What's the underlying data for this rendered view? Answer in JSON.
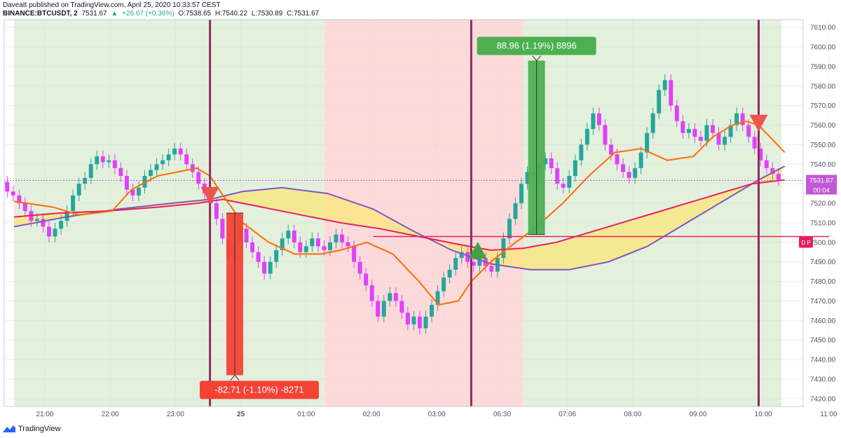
{
  "header": {
    "publisher_line": "Daveatt published on TradingView.com, April 25, 2020 10:33:57 CEST",
    "symbol": "BINANCE:BTCUSDT, 2",
    "last": "7531.67",
    "change": "+26.67 (+0.36%)",
    "open": "O:7538.65",
    "high": "H:7540.22",
    "low": "L:7530.89",
    "close": "C:7531.67"
  },
  "footer": {
    "brand": "TradingView"
  },
  "colors": {
    "green_zone": "#e3f0dc",
    "red_zone": "#fddada",
    "up": "#26a69a",
    "down": "#e040fb",
    "fast_ma": "#ff6d00",
    "slow_ma": "#e91e63",
    "trend": "#7e57c2",
    "fill": "#fbe67a"
  },
  "chart_data": {
    "type": "candlestick",
    "x_ticks": [
      "21:00",
      "22:00",
      "23:00",
      "25",
      "01:00",
      "02:00",
      "03:00",
      "06:30",
      "07:06",
      "08:00",
      "09:00",
      "10:00",
      "11:00"
    ],
    "y_ticks": [
      7420.0,
      7430.0,
      7440.0,
      7450.0,
      7460.0,
      7470.0,
      7480.0,
      7490.0,
      7500.0,
      7510.0,
      7520.0,
      7530.0,
      7540.0,
      7550.0,
      7560.0,
      7570.0,
      7580.0,
      7590.0,
      7600.0,
      7610.0
    ],
    "ylim": [
      7416,
      7614
    ],
    "price_label": "7531.67",
    "countdown_label": "00:04",
    "side_tag": "D P",
    "zones": [
      {
        "from": 0,
        "to": 4.75,
        "state": "long"
      },
      {
        "from": 4.75,
        "to": 7.8,
        "state": "short"
      },
      {
        "from": 7.8,
        "to": 11.75,
        "state": "long"
      }
    ],
    "signal_lines": [
      3.0,
      7.0,
      11.4
    ],
    "signals": [
      {
        "type": "sell",
        "x": 3.0,
        "price": 7524
      },
      {
        "type": "buy",
        "x": 7.1,
        "price": 7496
      },
      {
        "type": "sell",
        "x": 11.4,
        "price": 7561
      }
    ],
    "measures": [
      {
        "label": "-82.71 (-1.10%) -8271",
        "x": 3.38,
        "from": 7515,
        "to": 7432,
        "dir": "down"
      },
      {
        "label": "88.96 (1.19%) 8896",
        "x": 8.0,
        "from": 7504,
        "to": 7593,
        "dir": "up"
      }
    ],
    "level_line": {
      "price": 7503,
      "from": 5.5,
      "to": 12.48
    },
    "candles": [
      [
        7531,
        7526
      ],
      [
        7526,
        7524
      ],
      [
        7524,
        7520
      ],
      [
        7520,
        7516
      ],
      [
        7516,
        7511
      ],
      [
        7511,
        7512
      ],
      [
        7512,
        7508
      ],
      [
        7508,
        7503
      ],
      [
        7503,
        7507
      ],
      [
        7507,
        7511
      ],
      [
        7511,
        7516
      ],
      [
        7516,
        7524
      ],
      [
        7524,
        7530
      ],
      [
        7530,
        7533
      ],
      [
        7533,
        7540
      ],
      [
        7540,
        7544
      ],
      [
        7544,
        7541
      ],
      [
        7541,
        7542
      ],
      [
        7542,
        7538
      ],
      [
        7538,
        7534
      ],
      [
        7534,
        7527
      ],
      [
        7527,
        7524
      ],
      [
        7524,
        7528
      ],
      [
        7528,
        7534
      ],
      [
        7534,
        7537
      ],
      [
        7537,
        7540
      ],
      [
        7540,
        7542
      ],
      [
        7542,
        7545
      ],
      [
        7545,
        7548
      ],
      [
        7548,
        7545
      ],
      [
        7545,
        7540
      ],
      [
        7540,
        7536
      ],
      [
        7536,
        7530
      ],
      [
        7530,
        7525
      ],
      [
        7525,
        7520
      ],
      [
        7520,
        7512
      ],
      [
        7512,
        7502
      ],
      [
        7502,
        7492
      ],
      [
        7492,
        7500
      ],
      [
        7500,
        7507
      ],
      [
        7507,
        7500
      ],
      [
        7500,
        7495
      ],
      [
        7495,
        7490
      ],
      [
        7490,
        7484
      ],
      [
        7484,
        7490
      ],
      [
        7490,
        7496
      ],
      [
        7496,
        7502
      ],
      [
        7502,
        7506
      ],
      [
        7506,
        7500
      ],
      [
        7500,
        7495
      ],
      [
        7495,
        7498
      ],
      [
        7498,
        7502
      ],
      [
        7502,
        7498
      ],
      [
        7498,
        7496
      ],
      [
        7496,
        7500
      ],
      [
        7500,
        7504
      ],
      [
        7504,
        7500
      ],
      [
        7500,
        7498
      ],
      [
        7498,
        7490
      ],
      [
        7490,
        7484
      ],
      [
        7484,
        7478
      ],
      [
        7478,
        7470
      ],
      [
        7470,
        7462
      ],
      [
        7462,
        7470
      ],
      [
        7470,
        7474
      ],
      [
        7474,
        7470
      ],
      [
        7470,
        7464
      ],
      [
        7464,
        7458
      ],
      [
        7458,
        7462
      ],
      [
        7462,
        7456
      ],
      [
        7456,
        7462
      ],
      [
        7462,
        7468
      ],
      [
        7468,
        7475
      ],
      [
        7475,
        7482
      ],
      [
        7482,
        7486
      ],
      [
        7486,
        7492
      ],
      [
        7492,
        7495
      ],
      [
        7495,
        7490
      ],
      [
        7490,
        7488
      ],
      [
        7488,
        7492
      ],
      [
        7492,
        7488
      ],
      [
        7488,
        7485
      ],
      [
        7485,
        7492
      ],
      [
        7492,
        7502
      ],
      [
        7502,
        7512
      ],
      [
        7512,
        7520
      ],
      [
        7520,
        7530
      ],
      [
        7530,
        7536
      ],
      [
        7536,
        7534
      ],
      [
        7534,
        7540
      ],
      [
        7540,
        7543
      ],
      [
        7543,
        7538
      ],
      [
        7538,
        7530
      ],
      [
        7530,
        7528
      ],
      [
        7528,
        7534
      ],
      [
        7534,
        7542
      ],
      [
        7542,
        7550
      ],
      [
        7550,
        7558
      ],
      [
        7558,
        7566
      ],
      [
        7566,
        7560
      ],
      [
        7560,
        7550
      ],
      [
        7550,
        7545
      ],
      [
        7545,
        7540
      ],
      [
        7540,
        7536
      ],
      [
        7536,
        7533
      ],
      [
        7533,
        7538
      ],
      [
        7538,
        7546
      ],
      [
        7546,
        7556
      ],
      [
        7556,
        7566
      ],
      [
        7566,
        7578
      ],
      [
        7578,
        7583
      ],
      [
        7583,
        7570
      ],
      [
        7570,
        7562
      ],
      [
        7562,
        7556
      ],
      [
        7556,
        7558
      ],
      [
        7558,
        7554
      ],
      [
        7554,
        7552
      ],
      [
        7552,
        7560
      ],
      [
        7560,
        7556
      ],
      [
        7556,
        7550
      ],
      [
        7550,
        7554
      ],
      [
        7554,
        7560
      ],
      [
        7560,
        7566
      ],
      [
        7566,
        7560
      ],
      [
        7560,
        7554
      ],
      [
        7554,
        7548
      ],
      [
        7548,
        7542
      ],
      [
        7542,
        7538
      ],
      [
        7538,
        7535
      ],
      [
        7535,
        7532
      ]
    ],
    "fast_ma": [
      [
        0,
        7521
      ],
      [
        0.6,
        7518
      ],
      [
        1.0,
        7514
      ],
      [
        1.5,
        7516
      ],
      [
        1.8,
        7527
      ],
      [
        2.2,
        7534
      ],
      [
        2.5,
        7536
      ],
      [
        2.8,
        7538
      ],
      [
        3.0,
        7534
      ],
      [
        3.2,
        7524
      ],
      [
        3.5,
        7510
      ],
      [
        3.9,
        7500
      ],
      [
        4.3,
        7494
      ],
      [
        4.7,
        7494
      ],
      [
        5.0,
        7496
      ],
      [
        5.4,
        7500
      ],
      [
        5.8,
        7494
      ],
      [
        6.2,
        7480
      ],
      [
        6.5,
        7468
      ],
      [
        6.8,
        7470
      ],
      [
        7.0,
        7480
      ],
      [
        7.3,
        7490
      ],
      [
        7.6,
        7498
      ],
      [
        8.0,
        7508
      ],
      [
        8.4,
        7520
      ],
      [
        8.8,
        7534
      ],
      [
        9.2,
        7546
      ],
      [
        9.6,
        7548
      ],
      [
        10.0,
        7542
      ],
      [
        10.4,
        7544
      ],
      [
        10.7,
        7554
      ],
      [
        11.0,
        7560
      ],
      [
        11.2,
        7562
      ],
      [
        11.4,
        7560
      ],
      [
        11.6,
        7553
      ],
      [
        11.8,
        7546
      ]
    ],
    "slow_ma": [
      [
        0,
        7513
      ],
      [
        0.7,
        7515
      ],
      [
        1.4,
        7516
      ],
      [
        2.2,
        7518
      ],
      [
        2.8,
        7520
      ],
      [
        3.2,
        7522
      ],
      [
        3.8,
        7518
      ],
      [
        4.4,
        7514
      ],
      [
        5.0,
        7510
      ],
      [
        5.6,
        7507
      ],
      [
        6.2,
        7503
      ],
      [
        6.8,
        7499
      ],
      [
        7.3,
        7496
      ],
      [
        7.8,
        7497
      ],
      [
        8.3,
        7500
      ],
      [
        8.8,
        7505
      ],
      [
        9.3,
        7510
      ],
      [
        9.8,
        7515
      ],
      [
        10.3,
        7520
      ],
      [
        10.8,
        7525
      ],
      [
        11.3,
        7530
      ],
      [
        11.8,
        7532
      ]
    ],
    "trend_ma": [
      [
        0,
        7508
      ],
      [
        0.8,
        7513
      ],
      [
        1.6,
        7517
      ],
      [
        2.4,
        7520
      ],
      [
        3.0,
        7522
      ],
      [
        3.5,
        7526
      ],
      [
        4.1,
        7528
      ],
      [
        4.8,
        7525
      ],
      [
        5.5,
        7517
      ],
      [
        6.1,
        7506
      ],
      [
        6.7,
        7496
      ],
      [
        7.3,
        7489
      ],
      [
        7.9,
        7486
      ],
      [
        8.5,
        7486
      ],
      [
        9.1,
        7490
      ],
      [
        9.7,
        7498
      ],
      [
        10.3,
        7510
      ],
      [
        10.9,
        7522
      ],
      [
        11.4,
        7532
      ],
      [
        11.8,
        7539
      ]
    ]
  }
}
